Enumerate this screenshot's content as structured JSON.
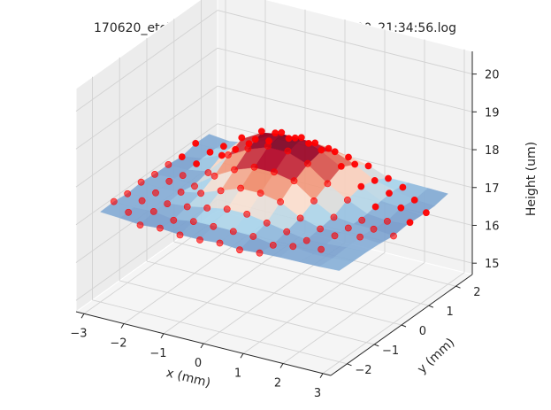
{
  "chart_data": {
    "type": "surface3d-scatter",
    "title": "170620_etchtest_squares_JJetch_2017-06-20_21:34:56.log",
    "xlabel": "x (mm)",
    "ylabel": "y (mm)",
    "zlabel": "Height (um)",
    "xticks": [
      "−3",
      "−2",
      "−1",
      "0",
      "1",
      "2",
      "3"
    ],
    "yticks": [
      "−2",
      "−1",
      "0",
      "1",
      "2"
    ],
    "zticks": [
      "15",
      "16",
      "17",
      "18",
      "19",
      "20"
    ],
    "xlim": [
      -3.2,
      3.2
    ],
    "ylim": [
      -2.6,
      2.6
    ],
    "zlim": [
      14.7,
      20.6
    ],
    "grid": true,
    "pane_color": "#f2f2f2",
    "marker_color": "#ff0000",
    "surface_colormap": [
      "#4b6bb0",
      "#a8d4ec",
      "#fbe2d2",
      "#f08a6a",
      "#b40426",
      "#67001f"
    ],
    "points": [
      {
        "x": -3.0,
        "y": 1.5,
        "z": 17.1
      },
      {
        "x": -3.0,
        "y": 1.0,
        "z": 17.0
      },
      {
        "x": -3.0,
        "y": 0.5,
        "z": 17.05
      },
      {
        "x": -3.0,
        "y": 0.0,
        "z": 17.05
      },
      {
        "x": -3.0,
        "y": -0.5,
        "z": 17.1
      },
      {
        "x": -3.0,
        "y": -1.0,
        "z": 17.05
      },
      {
        "x": -3.0,
        "y": -1.5,
        "z": 17.1
      },
      {
        "x": -2.5,
        "y": 1.8,
        "z": 17.0
      },
      {
        "x": -2.5,
        "y": 1.3,
        "z": 17.1
      },
      {
        "x": -2.5,
        "y": 0.8,
        "z": 17.05
      },
      {
        "x": -2.5,
        "y": 0.3,
        "z": 17.0
      },
      {
        "x": -2.5,
        "y": -0.2,
        "z": 17.1
      },
      {
        "x": -2.5,
        "y": -0.7,
        "z": 17.05
      },
      {
        "x": -2.5,
        "y": -1.2,
        "z": 17.1
      },
      {
        "x": -2.5,
        "y": -1.7,
        "z": 17.05
      },
      {
        "x": -2.0,
        "y": 2.0,
        "z": 17.1
      },
      {
        "x": -2.0,
        "y": 1.5,
        "z": 17.2
      },
      {
        "x": -2.0,
        "y": 1.0,
        "z": 17.3
      },
      {
        "x": -2.0,
        "y": 0.5,
        "z": 17.1
      },
      {
        "x": -2.0,
        "y": 0.0,
        "z": 17.0
      },
      {
        "x": -2.0,
        "y": -0.5,
        "z": 17.1
      },
      {
        "x": -2.0,
        "y": -1.0,
        "z": 17.05
      },
      {
        "x": -2.0,
        "y": -1.5,
        "z": 17.1
      },
      {
        "x": -2.0,
        "y": -2.0,
        "z": 17.0
      },
      {
        "x": -1.5,
        "y": 2.0,
        "z": 17.3
      },
      {
        "x": -1.5,
        "y": 1.5,
        "z": 17.6
      },
      {
        "x": -1.5,
        "y": 1.0,
        "z": 17.9
      },
      {
        "x": -1.5,
        "y": 0.5,
        "z": 17.7
      },
      {
        "x": -1.5,
        "y": 0.0,
        "z": 17.4
      },
      {
        "x": -1.5,
        "y": -0.5,
        "z": 17.2
      },
      {
        "x": -1.5,
        "y": -1.0,
        "z": 17.1
      },
      {
        "x": -1.5,
        "y": -1.5,
        "z": 17.0
      },
      {
        "x": -1.5,
        "y": -2.0,
        "z": 17.05
      },
      {
        "x": -1.0,
        "y": 2.0,
        "z": 17.5
      },
      {
        "x": -1.0,
        "y": 1.5,
        "z": 17.9
      },
      {
        "x": -1.0,
        "y": 1.0,
        "z": 18.2
      },
      {
        "x": -1.0,
        "y": 0.5,
        "z": 18.0
      },
      {
        "x": -1.0,
        "y": 0.0,
        "z": 17.7
      },
      {
        "x": -1.0,
        "y": -0.5,
        "z": 17.4
      },
      {
        "x": -1.0,
        "y": -1.0,
        "z": 17.2
      },
      {
        "x": -1.0,
        "y": -1.5,
        "z": 17.1
      },
      {
        "x": -1.0,
        "y": -2.0,
        "z": 17.0
      },
      {
        "x": -0.5,
        "y": 2.0,
        "z": 17.5
      },
      {
        "x": -0.5,
        "y": 1.5,
        "z": 17.9
      },
      {
        "x": -0.5,
        "y": 1.0,
        "z": 18.3
      },
      {
        "x": -0.5,
        "y": 0.5,
        "z": 18.2
      },
      {
        "x": -0.5,
        "y": 0.0,
        "z": 17.9
      },
      {
        "x": -0.5,
        "y": -0.5,
        "z": 17.6
      },
      {
        "x": -0.5,
        "y": -1.0,
        "z": 17.3
      },
      {
        "x": -0.5,
        "y": -1.5,
        "z": 17.1
      },
      {
        "x": -0.5,
        "y": -2.0,
        "z": 17.0
      },
      {
        "x": 0.0,
        "y": 2.0,
        "z": 17.5
      },
      {
        "x": 0.0,
        "y": 1.5,
        "z": 17.9
      },
      {
        "x": 0.0,
        "y": 1.0,
        "z": 18.3
      },
      {
        "x": 0.0,
        "y": 0.5,
        "z": 18.2
      },
      {
        "x": 0.0,
        "y": 0.0,
        "z": 17.9
      },
      {
        "x": 0.0,
        "y": -0.5,
        "z": 17.6
      },
      {
        "x": 0.0,
        "y": -1.0,
        "z": 17.3
      },
      {
        "x": 0.0,
        "y": -1.5,
        "z": 17.1
      },
      {
        "x": 0.0,
        "y": -2.0,
        "z": 17.05
      },
      {
        "x": 0.5,
        "y": 2.0,
        "z": 17.4
      },
      {
        "x": 0.5,
        "y": 1.5,
        "z": 17.8
      },
      {
        "x": 0.5,
        "y": 1.0,
        "z": 18.1
      },
      {
        "x": 0.5,
        "y": 0.5,
        "z": 18.0
      },
      {
        "x": 0.5,
        "y": 0.0,
        "z": 17.8
      },
      {
        "x": 0.5,
        "y": -0.5,
        "z": 17.5
      },
      {
        "x": 0.5,
        "y": -1.0,
        "z": 17.2
      },
      {
        "x": 0.5,
        "y": -1.5,
        "z": 17.1
      },
      {
        "x": 0.5,
        "y": -2.0,
        "z": 17.0
      },
      {
        "x": 1.0,
        "y": 2.0,
        "z": 17.3
      },
      {
        "x": 1.0,
        "y": 1.5,
        "z": 17.6
      },
      {
        "x": 1.0,
        "y": 1.0,
        "z": 17.8
      },
      {
        "x": 1.0,
        "y": 0.5,
        "z": 17.6
      },
      {
        "x": 1.0,
        "y": 0.0,
        "z": 17.4
      },
      {
        "x": 1.0,
        "y": -0.5,
        "z": 17.2
      },
      {
        "x": 1.0,
        "y": -1.0,
        "z": 17.1
      },
      {
        "x": 1.0,
        "y": -1.5,
        "z": 17.0
      },
      {
        "x": 1.0,
        "y": -2.0,
        "z": 17.05
      },
      {
        "x": 1.5,
        "y": 2.0,
        "z": 17.1
      },
      {
        "x": 1.5,
        "y": 1.5,
        "z": 17.3
      },
      {
        "x": 1.5,
        "y": 1.0,
        "z": 17.4
      },
      {
        "x": 1.5,
        "y": 0.5,
        "z": 17.3
      },
      {
        "x": 1.5,
        "y": 0.0,
        "z": 17.1
      },
      {
        "x": 1.5,
        "y": -0.5,
        "z": 17.05
      },
      {
        "x": 1.5,
        "y": -1.0,
        "z": 17.0
      },
      {
        "x": 1.5,
        "y": -1.5,
        "z": 17.1
      },
      {
        "x": 2.0,
        "y": 1.8,
        "z": 17.1
      },
      {
        "x": 2.0,
        "y": 1.3,
        "z": 17.2
      },
      {
        "x": 2.0,
        "y": 0.8,
        "z": 17.1
      },
      {
        "x": 2.0,
        "y": 0.3,
        "z": 17.0
      },
      {
        "x": 2.0,
        "y": -0.2,
        "z": 17.05
      },
      {
        "x": 2.0,
        "y": -0.7,
        "z": 17.1
      },
      {
        "x": 2.0,
        "y": -1.2,
        "z": 17.0
      },
      {
        "x": 2.5,
        "y": 1.5,
        "z": 17.05
      },
      {
        "x": 2.5,
        "y": 1.0,
        "z": 17.1
      },
      {
        "x": 2.5,
        "y": 0.5,
        "z": 17.0
      },
      {
        "x": 2.5,
        "y": 0.0,
        "z": 17.05
      },
      {
        "x": 2.5,
        "y": -0.5,
        "z": 17.1
      },
      {
        "x": 3.0,
        "y": 1.2,
        "z": 17.0
      },
      {
        "x": 3.0,
        "y": 0.6,
        "z": 17.05
      },
      {
        "x": 3.0,
        "y": 0.0,
        "z": 17.0
      }
    ]
  }
}
